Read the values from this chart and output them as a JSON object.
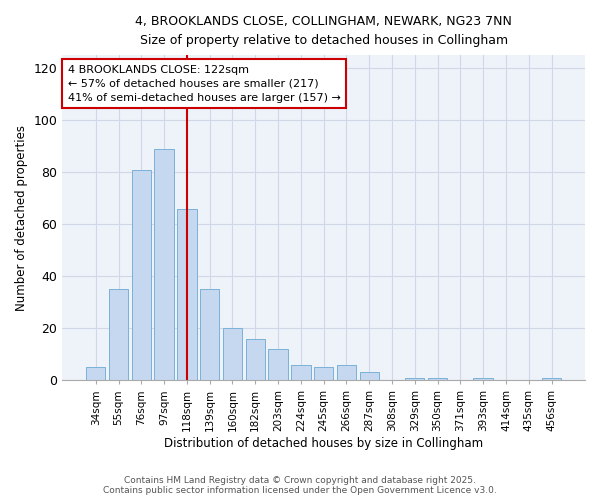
{
  "title_line1": "4, BROOKLANDS CLOSE, COLLINGHAM, NEWARK, NG23 7NN",
  "title_line2": "Size of property relative to detached houses in Collingham",
  "xlabel": "Distribution of detached houses by size in Collingham",
  "ylabel": "Number of detached properties",
  "categories": [
    "34sqm",
    "55sqm",
    "76sqm",
    "97sqm",
    "118sqm",
    "139sqm",
    "160sqm",
    "182sqm",
    "203sqm",
    "224sqm",
    "245sqm",
    "266sqm",
    "287sqm",
    "308sqm",
    "329sqm",
    "350sqm",
    "371sqm",
    "393sqm",
    "414sqm",
    "435sqm",
    "456sqm"
  ],
  "values": [
    5,
    35,
    81,
    89,
    66,
    35,
    20,
    16,
    12,
    6,
    5,
    6,
    3,
    0,
    1,
    1,
    0,
    1,
    0,
    0,
    1
  ],
  "bar_color": "#c5d8f0",
  "bar_edge_color": "#7ab0d8",
  "bar_edge_width": 0.7,
  "grid_color": "#d0d8e8",
  "background_color": "#eef3fa",
  "fig_background_color": "#ffffff",
  "annotation_line1": "4 BROOKLANDS CLOSE: 122sqm",
  "annotation_line2": "← 57% of detached houses are smaller (217)",
  "annotation_line3": "41% of semi-detached houses are larger (157) →",
  "vline_x_index": 4.0,
  "annotation_box_color": "#ffffff",
  "annotation_border_color": "#cc0000",
  "vline_color": "#cc0000",
  "ylim": [
    0,
    125
  ],
  "yticks": [
    0,
    20,
    40,
    60,
    80,
    100,
    120
  ],
  "footer_line1": "Contains HM Land Registry data © Crown copyright and database right 2025.",
  "footer_line2": "Contains public sector information licensed under the Open Government Licence v3.0."
}
